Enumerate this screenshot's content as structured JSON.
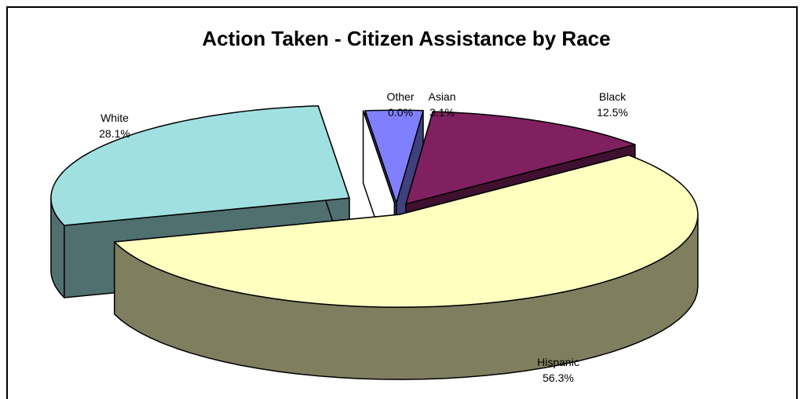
{
  "chart_data": {
    "type": "pie",
    "title": "Action Taken - Citizen Assistance by Race",
    "categories": [
      "Asian",
      "Black",
      "Hispanic",
      "White",
      "Other"
    ],
    "values": [
      3.1,
      12.5,
      56.3,
      28.1,
      0.0
    ],
    "value_labels": [
      "3.1%",
      "12.5%",
      "56.3%",
      "28.1%",
      "0.0%"
    ],
    "exploded": true,
    "three_d": true,
    "colors": {
      "Asian": {
        "top": "#8080FF",
        "side": "#40407F"
      },
      "Black": {
        "top": "#802060",
        "side": "#401030"
      },
      "Hispanic": {
        "top": "#FFFFC0",
        "side": "#7F7F60"
      },
      "White": {
        "top": "#A0E0E0",
        "side": "#507070"
      },
      "Other": {
        "top": "#FFFFFF",
        "side": "#FFFFFF"
      }
    },
    "legend": "none"
  }
}
